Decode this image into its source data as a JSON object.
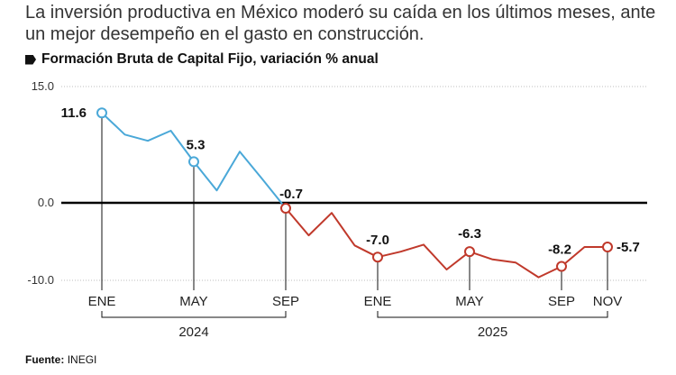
{
  "headline": "La inversión productiva en México moderó su caída en los últimos meses, ante un mejor desempeño en el gasto en construcción.",
  "subtitle": "Formación Bruta de Capital Fijo, variación % anual",
  "source_label": "Fuente:",
  "source_value": "INEGI",
  "colors": {
    "series_2024": "#4aa8d8",
    "series_2025": "#c0392b",
    "zero_line": "#000000",
    "grid": "#bdbdbd"
  },
  "chart_data": {
    "type": "line",
    "title": "Formación Bruta de Capital Fijo, variación % anual",
    "xlabel": "",
    "ylabel": "",
    "ylim": [
      -10,
      15
    ],
    "yticks": [
      "15.0",
      "0.0",
      "-10.0"
    ],
    "ytick_values": [
      15,
      0,
      -10
    ],
    "x": [
      "Ene 2024",
      "Feb 2024",
      "Mar 2024",
      "Abr 2024",
      "May 2024",
      "Jun 2024",
      "Jul 2024",
      "Ago 2024",
      "Sep 2024",
      "Oct 2024",
      "Nov 2024",
      "Dic 2024",
      "Ene 2025",
      "Feb 2025",
      "Mar 2025",
      "Abr 2025",
      "May 2025",
      "Jun 2025",
      "Jul 2025",
      "Ago 2025",
      "Sep 2025",
      "Oct 2025",
      "Nov 2025"
    ],
    "series": [
      {
        "name": "2024",
        "values": [
          11.6,
          8.8,
          8.0,
          9.3,
          5.3,
          1.6,
          6.6,
          3.0,
          -0.7,
          null,
          null,
          null,
          null,
          null,
          null,
          null,
          null,
          null,
          null,
          null,
          null,
          null,
          null
        ]
      },
      {
        "name": "2025",
        "values": [
          null,
          null,
          null,
          null,
          null,
          null,
          null,
          null,
          -0.7,
          -4.2,
          -1.3,
          -5.5,
          -7.0,
          -6.3,
          -5.4,
          -8.6,
          -6.3,
          -7.3,
          -7.7,
          -9.6,
          -8.2,
          -5.7,
          -5.7
        ]
      }
    ],
    "labeled_points": [
      {
        "index": 0,
        "label": "11.6"
      },
      {
        "index": 4,
        "label": "5.3"
      },
      {
        "index": 8,
        "label": "-0.7"
      },
      {
        "index": 12,
        "label": "-7.0"
      },
      {
        "index": 16,
        "label": "-6.3"
      },
      {
        "index": 20,
        "label": "-8.2"
      },
      {
        "index": 22,
        "label": "-5.7"
      }
    ],
    "xticks": [
      {
        "index": 0,
        "label": "ENE"
      },
      {
        "index": 4,
        "label": "MAY"
      },
      {
        "index": 8,
        "label": "SEP"
      },
      {
        "index": 12,
        "label": "ENE"
      },
      {
        "index": 16,
        "label": "MAY"
      },
      {
        "index": 20,
        "label": "SEP"
      },
      {
        "index": 22,
        "label": "NOV"
      }
    ],
    "years": [
      {
        "label": "2024",
        "from": 0,
        "to": 8
      },
      {
        "label": "2025",
        "from": 12,
        "to": 22
      }
    ]
  }
}
